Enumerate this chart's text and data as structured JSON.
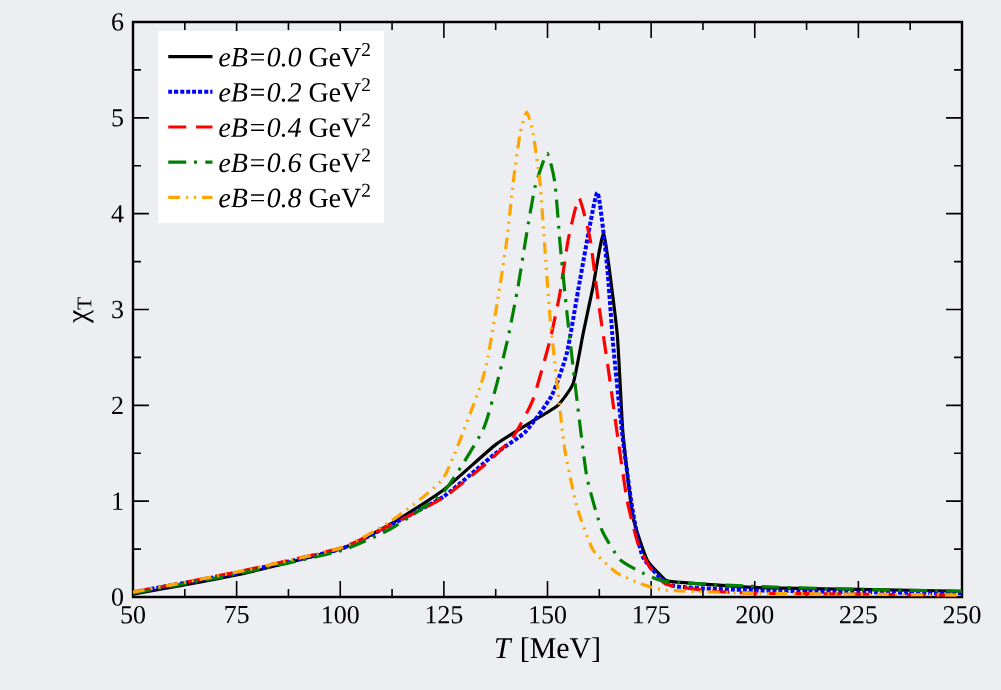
{
  "chart_data": {
    "type": "line",
    "xlabel": "*T* [MeV]",
    "ylabel": "χ$_{T}$",
    "xlim": [
      50,
      250
    ],
    "ylim": [
      0,
      6
    ],
    "xticks": [
      50,
      75,
      100,
      125,
      150,
      175,
      200,
      225,
      250
    ],
    "yticks": [
      0,
      1,
      2,
      3,
      4,
      5,
      6
    ],
    "legend": "top left",
    "grid": false,
    "marker": "none",
    "series": [
      {
        "name": "*eB=0.0* GeV$^{2}$",
        "color": "#000000",
        "line_style": "solid",
        "x": [
          50,
          75,
          100,
          112.5,
          125,
          137.5,
          147,
          152.5,
          156.2,
          158.6,
          161,
          163.6,
          166.8,
          168.2,
          170.6,
          174,
          177.9,
          180,
          200,
          225,
          250
        ],
        "values": [
          0.03,
          0.23,
          0.5,
          0.77,
          1.12,
          1.59,
          1.85,
          2.0,
          2.23,
          2.75,
          3.24,
          3.78,
          2.75,
          1.71,
          0.84,
          0.39,
          0.2,
          0.16,
          0.1,
          0.08,
          0.06
        ]
      },
      {
        "name": "*eB=0.2* GeV$^{2}$",
        "color": "#0000ff",
        "line_style": "dotted",
        "x": [
          50,
          75,
          100,
          112.5,
          125,
          137.5,
          144.6,
          151,
          154.7,
          157.8,
          162,
          164.4,
          165.8,
          168,
          170.4,
          173,
          180,
          200,
          225,
          250
        ],
        "values": [
          0.05,
          0.25,
          0.5,
          0.76,
          1.05,
          1.5,
          1.72,
          2.1,
          2.55,
          3.3,
          4.22,
          3.44,
          2.65,
          1.71,
          0.94,
          0.42,
          0.12,
          0.07,
          0.05,
          0.04
        ]
      },
      {
        "name": "*eB=0.4* GeV$^{2}$",
        "color": "#ff0000",
        "line_style": "dashed",
        "x": [
          50,
          75,
          100,
          112.5,
          125,
          135.4,
          141.7,
          146.5,
          150.6,
          153,
          155,
          157.6,
          160.3,
          162.2,
          164.6,
          166.8,
          169.2,
          171.8,
          174.7,
          178.8,
          190,
          200,
          225,
          250
        ],
        "values": [
          0.05,
          0.26,
          0.51,
          0.76,
          1.04,
          1.4,
          1.67,
          2.06,
          2.68,
          3.17,
          3.73,
          4.16,
          3.73,
          3.1,
          2.4,
          1.71,
          1.01,
          0.56,
          0.31,
          0.13,
          0.06,
          0.04,
          0.03,
          0.02
        ]
      },
      {
        "name": "*eB=0.6* GeV$^{2}$",
        "color": "#008000",
        "line_style": "dashdot",
        "x": [
          50,
          75,
          100,
          112.5,
          125,
          134.4,
          137.8,
          140.5,
          142.9,
          145,
          147,
          149.9,
          151.8,
          153,
          154.7,
          157.1,
          159.5,
          163.1,
          167.5,
          173,
          178.8,
          200,
          225,
          250
        ],
        "values": [
          0.04,
          0.24,
          0.48,
          0.72,
          1.1,
          1.74,
          2.23,
          2.71,
          3.24,
          3.8,
          4.28,
          4.63,
          4.32,
          3.7,
          2.96,
          2.06,
          1.25,
          0.7,
          0.39,
          0.25,
          0.16,
          0.11,
          0.08,
          0.06
        ]
      },
      {
        "name": "*eB=0.8* GeV$^{2}$",
        "color": "#ffa500",
        "line_style": "dashdotdot",
        "x": [
          50,
          75,
          100,
          112.5,
          125,
          133.7,
          135.6,
          138,
          140.2,
          141.7,
          143.4,
          145,
          146.5,
          148.2,
          149.4,
          150.6,
          152.3,
          154.2,
          157.1,
          161,
          166.8,
          173,
          178.8,
          200,
          225,
          250
        ],
        "values": [
          0.05,
          0.26,
          0.51,
          0.8,
          1.25,
          2.19,
          2.5,
          3.1,
          3.73,
          4.32,
          4.84,
          5.06,
          4.84,
          4.32,
          3.62,
          2.92,
          2.23,
          1.53,
          0.94,
          0.49,
          0.25,
          0.13,
          0.07,
          0.04,
          0.03,
          0.02
        ]
      }
    ]
  }
}
